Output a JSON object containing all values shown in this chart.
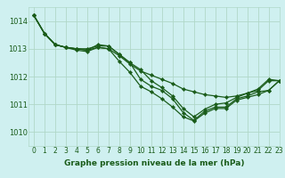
{
  "title": "Graphe pression niveau de la mer (hPa)",
  "background_color": "#cff0f0",
  "grid_color": "#b0d8c8",
  "line_color": "#1a5c1a",
  "xlim": [
    -0.5,
    23
  ],
  "ylim": [
    1009.5,
    1014.5
  ],
  "yticks": [
    1010,
    1011,
    1012,
    1013,
    1014
  ],
  "xticks": [
    0,
    1,
    2,
    3,
    4,
    5,
    6,
    7,
    8,
    9,
    10,
    11,
    12,
    13,
    14,
    15,
    16,
    17,
    18,
    19,
    20,
    21,
    22,
    23
  ],
  "series": [
    [
      1014.2,
      1013.55,
      1013.15,
      1013.05,
      1013.0,
      1012.95,
      1013.05,
      1013.0,
      1012.75,
      1012.45,
      1012.2,
      1012.05,
      1011.9,
      1011.75,
      1011.55,
      1011.45,
      1011.35,
      1011.3,
      1011.25,
      1011.3,
      1011.4,
      1011.5,
      1011.85,
      1011.85
    ],
    [
      1014.2,
      1013.55,
      1013.15,
      1013.05,
      1012.95,
      1012.9,
      1013.05,
      1013.0,
      1012.55,
      1012.15,
      1011.65,
      1011.45,
      1011.2,
      1010.9,
      1010.55,
      1010.4,
      1010.68,
      1010.85,
      1010.85,
      1011.15,
      1011.25,
      1011.35,
      1011.5,
      1011.85
    ],
    [
      1014.2,
      1013.55,
      1013.15,
      1013.05,
      1013.0,
      1012.95,
      1013.15,
      1013.1,
      1012.8,
      1012.5,
      1011.9,
      1011.65,
      1011.5,
      1011.2,
      1010.7,
      1010.42,
      1010.75,
      1010.9,
      1010.9,
      1011.2,
      1011.3,
      1011.45,
      1011.5,
      1011.85
    ],
    [
      1014.2,
      1013.55,
      1013.15,
      1013.05,
      1013.0,
      1013.0,
      1013.1,
      1013.1,
      1012.8,
      1012.5,
      1012.25,
      1011.85,
      1011.6,
      1011.3,
      1010.85,
      1010.55,
      1010.82,
      1011.0,
      1011.05,
      1011.25,
      1011.4,
      1011.55,
      1011.9,
      1011.85
    ]
  ]
}
